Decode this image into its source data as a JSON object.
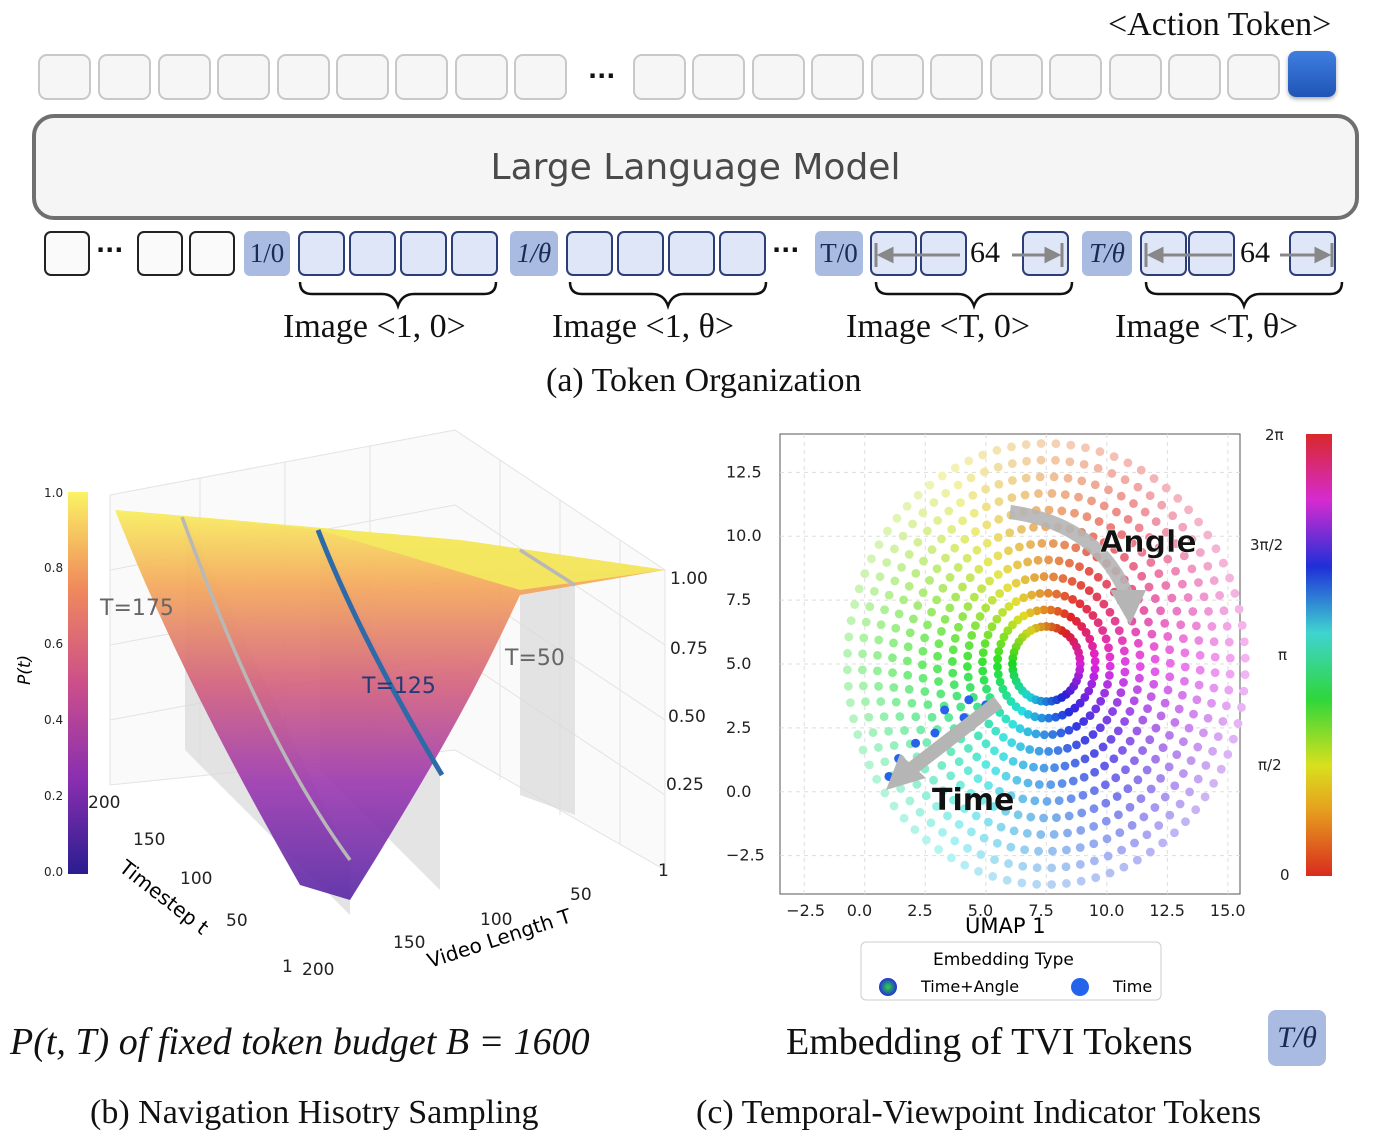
{
  "panel_a": {
    "action_token_label": "<Action Token>",
    "ellipsis": "···",
    "llm_label": "Large Language Model",
    "indicators": [
      "1/0",
      "1/θ",
      "T/0",
      "T/θ"
    ],
    "count_label": "64",
    "image_labels": [
      "Image <1, 0>",
      "Image <1, θ>",
      "Image <T, 0>",
      "Image <T, θ>"
    ],
    "caption": "(a) Token Organization"
  },
  "panel_b": {
    "formula_caption": "P(t, T) of fixed token budget B = 1600",
    "caption": "(b) Navigation Hisotry Sampling",
    "curve_labels": [
      "T=175",
      "T=125",
      "T=50"
    ]
  },
  "panel_c": {
    "title": "Embedding of TVI Tokens",
    "badge": "T/θ",
    "caption": "(c) Temporal-Viewpoint Indicator Tokens",
    "annotations": [
      "Angle",
      "Time"
    ],
    "legend_title": "Embedding Type",
    "legend_items": [
      "Time+Angle",
      "Time"
    ]
  },
  "colors": {
    "indicator": "#a9bbe0",
    "image_token": "#dfe6f7",
    "action_token": "#2f6ad0",
    "time_dots": "#2563eb"
  },
  "chart_data": [
    {
      "type": "surface",
      "zlabel": "P(t)",
      "xlabel": "Video Length T",
      "ylabel": "Timestep t",
      "x_ticks": [
        "1",
        "50",
        "100",
        "150",
        "200"
      ],
      "y_ticks": [
        "1",
        "50",
        "100",
        "150",
        "200"
      ],
      "z_ticks": [
        "0.25",
        "0.50",
        "0.75",
        "1.00"
      ],
      "colorbar_ticks": [
        "0.0",
        "0.2",
        "0.4",
        "0.6",
        "0.8",
        "1.0"
      ],
      "highlighted_curves": [
        175,
        125,
        50
      ]
    },
    {
      "type": "scatter",
      "xlabel": "UMAP 1",
      "x_ticks": [
        "−2.5",
        "0.0",
        "2.5",
        "5.0",
        "7.5",
        "10.0",
        "12.5",
        "15.0"
      ],
      "y_ticks": [
        "12.5",
        "10.0",
        "7.5",
        "5.0",
        "2.5",
        "0.0",
        "−2.5"
      ],
      "xlim": [
        -3.5,
        15.5
      ],
      "ylim": [
        -4.0,
        14.0
      ],
      "colorbar_ticks": [
        "2π",
        "3π/2",
        "π",
        "π/2",
        "0"
      ],
      "series": [
        {
          "name": "Time+Angle",
          "description_color": "hue by angle"
        },
        {
          "name": "Time",
          "points": [
            [
              4.3,
              3.6
            ],
            [
              3.3,
              3.2
            ],
            [
              2.9,
              2.3
            ],
            [
              2.1,
              1.9
            ],
            [
              1.4,
              1.3
            ],
            [
              1.0,
              0.6
            ],
            [
              5.0,
              3.4
            ],
            [
              4.1,
              2.9
            ]
          ]
        }
      ],
      "grid": true,
      "legend_position": "bottom"
    }
  ]
}
